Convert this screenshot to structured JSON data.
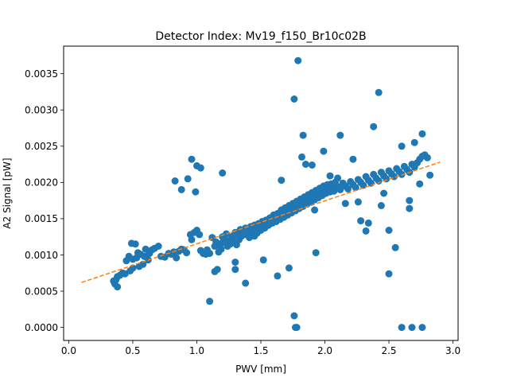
{
  "chart_data": {
    "type": "scatter",
    "title": "Detector Index: Mv19_f150_Br10c02B",
    "xlabel": "PWV [mm]",
    "ylabel": "A2 Signal [pW]",
    "xlim": [
      -0.04,
      3.04
    ],
    "ylim": [
      -0.00018,
      0.00388
    ],
    "xticks": [
      0.0,
      0.5,
      1.0,
      1.5,
      2.0,
      2.5,
      3.0
    ],
    "xtick_labels": [
      "0.0",
      "0.5",
      "1.0",
      "1.5",
      "2.0",
      "2.5",
      "3.0"
    ],
    "yticks": [
      0.0,
      0.0005,
      0.001,
      0.0015,
      0.002,
      0.0025,
      0.003,
      0.0035
    ],
    "ytick_labels": [
      "0.0000",
      "0.0005",
      "0.0010",
      "0.0015",
      "0.0020",
      "0.0025",
      "0.0030",
      "0.0035"
    ],
    "grid": false,
    "colors": {
      "points": "#1f77b4",
      "fit": "#ff7f0e"
    },
    "fit_line": {
      "x": [
        0.1,
        2.9
      ],
      "y": [
        0.00062,
        0.00228
      ],
      "style": "dashed"
    },
    "series": [
      {
        "name": "measurements",
        "points": [
          [
            0.35,
            0.00064
          ],
          [
            0.36,
            0.0006
          ],
          [
            0.37,
            0.00066
          ],
          [
            0.38,
            0.00056
          ],
          [
            0.38,
            0.0007
          ],
          [
            0.4,
            0.00072
          ],
          [
            0.42,
            0.00075
          ],
          [
            0.44,
            0.00074
          ],
          [
            0.45,
            0.00092
          ],
          [
            0.47,
            0.00098
          ],
          [
            0.48,
            0.00078
          ],
          [
            0.49,
            0.00116
          ],
          [
            0.5,
            0.00094
          ],
          [
            0.5,
            0.00082
          ],
          [
            0.52,
            0.00115
          ],
          [
            0.53,
            0.00096
          ],
          [
            0.54,
            0.00103
          ],
          [
            0.55,
            0.00084
          ],
          [
            0.56,
            0.00101
          ],
          [
            0.58,
            0.00087
          ],
          [
            0.59,
            0.00098
          ],
          [
            0.6,
            0.00108
          ],
          [
            0.62,
            0.00093
          ],
          [
            0.63,
            0.00102
          ],
          [
            0.65,
            0.00107
          ],
          [
            0.67,
            0.00109
          ],
          [
            0.7,
            0.00112
          ],
          [
            0.72,
            0.00098
          ],
          [
            0.75,
            0.00097
          ],
          [
            0.78,
            0.00102
          ],
          [
            0.8,
            0.00101
          ],
          [
            0.82,
            0.00104
          ],
          [
            0.84,
            0.00096
          ],
          [
            0.86,
            0.00105
          ],
          [
            0.88,
            0.00108
          ],
          [
            0.9,
            0.00107
          ],
          [
            0.92,
            0.00103
          ],
          [
            0.95,
            0.00128
          ],
          [
            0.96,
            0.00121
          ],
          [
            0.98,
            0.00131
          ],
          [
            1.0,
            0.00134
          ],
          [
            1.02,
            0.00128
          ],
          [
            1.03,
            0.00106
          ],
          [
            1.05,
            0.00102
          ],
          [
            1.07,
            0.00101
          ],
          [
            1.08,
            0.00107
          ],
          [
            1.1,
            0.00102
          ],
          [
            1.12,
            0.00124
          ],
          [
            1.14,
            0.00112
          ],
          [
            1.15,
            0.00118
          ],
          [
            1.17,
            0.00104
          ],
          [
            1.18,
            0.00113
          ],
          [
            1.19,
            0.00108
          ],
          [
            1.2,
            0.00117
          ],
          [
            1.21,
            0.00125
          ],
          [
            1.22,
            0.00121
          ],
          [
            1.23,
            0.00129
          ],
          [
            1.24,
            0.00112
          ],
          [
            1.25,
            0.00118
          ],
          [
            1.26,
            0.00115
          ],
          [
            1.27,
            0.00123
          ],
          [
            1.28,
            0.00126
          ],
          [
            1.29,
            0.00119
          ],
          [
            1.3,
            0.00131
          ],
          [
            1.31,
            0.00114
          ],
          [
            1.32,
            0.00128
          ],
          [
            1.33,
            0.00121
          ],
          [
            1.34,
            0.00135
          ],
          [
            1.35,
            0.00126
          ],
          [
            1.36,
            0.00131
          ],
          [
            1.37,
            0.00128
          ],
          [
            1.38,
            0.00137
          ],
          [
            1.39,
            0.00133
          ],
          [
            1.4,
            0.0013
          ],
          [
            1.41,
            0.00124
          ],
          [
            1.42,
            0.00139
          ],
          [
            1.43,
            0.00136
          ],
          [
            1.44,
            0.00133
          ],
          [
            1.45,
            0.00141
          ],
          [
            1.46,
            0.00137
          ],
          [
            1.47,
            0.0013
          ],
          [
            1.48,
            0.00143
          ],
          [
            1.49,
            0.00138
          ],
          [
            1.5,
            0.00134
          ],
          [
            1.51,
            0.00146
          ],
          [
            1.52,
            0.00142
          ],
          [
            1.53,
            0.00137
          ],
          [
            1.54,
            0.00148
          ],
          [
            1.55,
            0.00144
          ],
          [
            1.56,
            0.00141
          ],
          [
            1.57,
            0.00151
          ],
          [
            1.58,
            0.00147
          ],
          [
            1.59,
            0.00144
          ],
          [
            1.6,
            0.00155
          ],
          [
            1.61,
            0.00149
          ],
          [
            1.62,
            0.00146
          ],
          [
            1.63,
            0.00157
          ],
          [
            1.64,
            0.00153
          ],
          [
            1.65,
            0.00149
          ],
          [
            1.66,
            0.00162
          ],
          [
            1.67,
            0.00156
          ],
          [
            1.68,
            0.00152
          ],
          [
            1.69,
            0.00165
          ],
          [
            1.7,
            0.00159
          ],
          [
            1.71,
            0.00155
          ],
          [
            1.72,
            0.00168
          ],
          [
            1.73,
            0.00162
          ],
          [
            1.74,
            0.00158
          ],
          [
            1.75,
            0.00171
          ],
          [
            1.76,
            0.00165
          ],
          [
            1.77,
            0.00161
          ],
          [
            1.78,
            0.00174
          ],
          [
            1.79,
            0.00168
          ],
          [
            1.8,
            0.00164
          ],
          [
            1.81,
            0.00177
          ],
          [
            1.82,
            0.00171
          ],
          [
            1.83,
            0.00167
          ],
          [
            1.84,
            0.0018
          ],
          [
            1.85,
            0.00174
          ],
          [
            1.86,
            0.0017
          ],
          [
            1.87,
            0.00183
          ],
          [
            1.88,
            0.00177
          ],
          [
            1.89,
            0.00173
          ],
          [
            1.9,
            0.00186
          ],
          [
            1.91,
            0.0018
          ],
          [
            1.92,
            0.00176
          ],
          [
            1.93,
            0.00189
          ],
          [
            1.94,
            0.00183
          ],
          [
            1.95,
            0.00179
          ],
          [
            1.96,
            0.00192
          ],
          [
            1.97,
            0.00186
          ],
          [
            1.98,
            0.00182
          ],
          [
            1.99,
            0.00195
          ],
          [
            2.0,
            0.00189
          ],
          [
            2.01,
            0.00185
          ],
          [
            2.02,
            0.00197
          ],
          [
            2.03,
            0.00191
          ],
          [
            2.04,
            0.00187
          ],
          [
            2.05,
            0.00198
          ],
          [
            2.06,
            0.00192
          ],
          [
            2.07,
            0.00188
          ],
          [
            2.08,
            0.002
          ],
          [
            2.1,
            0.00194
          ],
          [
            2.12,
            0.0019
          ],
          [
            2.14,
            0.00199
          ],
          [
            2.16,
            0.00195
          ],
          [
            2.18,
            0.00191
          ],
          [
            2.2,
            0.00201
          ],
          [
            2.22,
            0.00197
          ],
          [
            2.24,
            0.00193
          ],
          [
            2.26,
            0.00204
          ],
          [
            2.28,
            0.002
          ],
          [
            2.3,
            0.00196
          ],
          [
            2.32,
            0.00208
          ],
          [
            2.34,
            0.00203
          ],
          [
            2.36,
            0.00199
          ],
          [
            2.38,
            0.00211
          ],
          [
            2.4,
            0.00206
          ],
          [
            2.42,
            0.00202
          ],
          [
            2.44,
            0.00214
          ],
          [
            2.46,
            0.00209
          ],
          [
            2.48,
            0.00205
          ],
          [
            2.5,
            0.00216
          ],
          [
            2.52,
            0.00212
          ],
          [
            2.54,
            0.00208
          ],
          [
            2.56,
            0.00219
          ],
          [
            2.58,
            0.00215
          ],
          [
            2.6,
            0.00211
          ],
          [
            2.62,
            0.00222
          ],
          [
            2.64,
            0.00218
          ],
          [
            2.66,
            0.00214
          ],
          [
            2.68,
            0.00225
          ],
          [
            2.7,
            0.00221
          ],
          [
            2.72,
            0.00227
          ],
          [
            2.74,
            0.00232
          ],
          [
            2.76,
            0.00236
          ],
          [
            2.78,
            0.00238
          ],
          [
            2.8,
            0.00234
          ],
          [
            2.82,
            0.0021
          ],
          [
            0.83,
            0.00202
          ],
          [
            0.88,
            0.0019
          ],
          [
            0.93,
            0.00205
          ],
          [
            0.96,
            0.00232
          ],
          [
            0.99,
            0.00187
          ],
          [
            1.0,
            0.00223
          ],
          [
            1.03,
            0.0022
          ],
          [
            1.2,
            0.00213
          ],
          [
            1.2,
            0.00125
          ],
          [
            1.1,
            0.00036
          ],
          [
            1.14,
            0.00077
          ],
          [
            1.16,
            0.0008
          ],
          [
            1.3,
            0.0009
          ],
          [
            1.3,
            0.0008
          ],
          [
            1.38,
            0.00061
          ],
          [
            1.52,
            0.00093
          ],
          [
            1.63,
            0.00071
          ],
          [
            1.72,
            0.00082
          ],
          [
            1.76,
            0.00016
          ],
          [
            1.77,
            0.0
          ],
          [
            1.78,
            0.0
          ],
          [
            1.79,
            0.00368
          ],
          [
            1.76,
            0.00315
          ],
          [
            1.83,
            0.00265
          ],
          [
            1.82,
            0.00235
          ],
          [
            1.85,
            0.00225
          ],
          [
            1.9,
            0.00224
          ],
          [
            1.93,
            0.00103
          ],
          [
            1.99,
            0.00243
          ],
          [
            2.04,
            0.00209
          ],
          [
            2.1,
            0.00206
          ],
          [
            2.12,
            0.00265
          ],
          [
            2.16,
            0.00171
          ],
          [
            2.22,
            0.00232
          ],
          [
            2.26,
            0.00173
          ],
          [
            2.28,
            0.00147
          ],
          [
            2.32,
            0.00133
          ],
          [
            2.34,
            0.00144
          ],
          [
            2.38,
            0.00277
          ],
          [
            2.42,
            0.00324
          ],
          [
            2.44,
            0.00168
          ],
          [
            2.46,
            0.00185
          ],
          [
            2.5,
            0.00134
          ],
          [
            2.5,
            0.00074
          ],
          [
            2.55,
            0.0011
          ],
          [
            2.6,
            0.0025
          ],
          [
            2.6,
            0.0
          ],
          [
            2.66,
            0.00164
          ],
          [
            2.68,
            0.0
          ],
          [
            2.7,
            0.00255
          ],
          [
            2.76,
            0.0
          ],
          [
            2.76,
            0.00267
          ],
          [
            2.74,
            0.00198
          ],
          [
            2.66,
            0.00175
          ],
          [
            1.55,
            0.00143
          ],
          [
            1.45,
            0.00126
          ],
          [
            1.66,
            0.00203
          ],
          [
            1.92,
            0.00162
          ]
        ]
      }
    ]
  }
}
